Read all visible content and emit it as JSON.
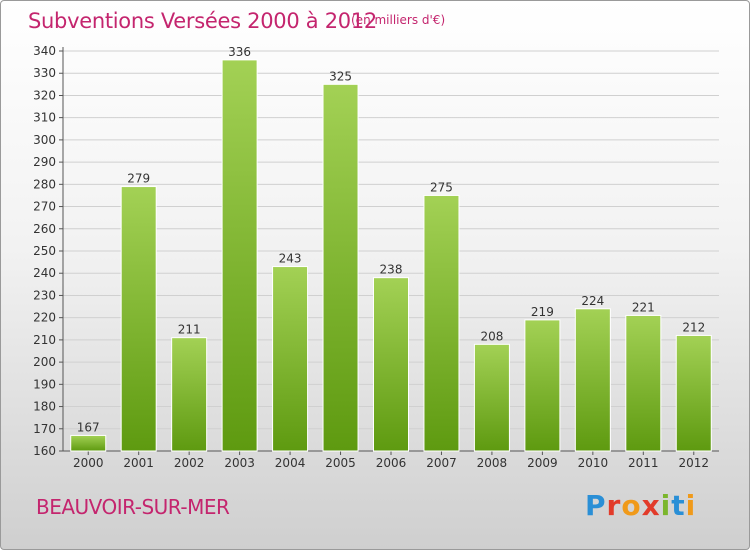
{
  "header": {
    "title": "Subventions Versées 2000 à 2012",
    "subtitle": "(en milliers d'€)"
  },
  "footer": {
    "place": "BEAUVOIR-SUR-MER",
    "logo": "Proxiti"
  },
  "colors": {
    "title": "#c4256e",
    "bar_top": "#a3d155",
    "bar_bottom": "#5e9a10",
    "grid": "#d0d0d0"
  },
  "chart_data": {
    "type": "bar",
    "title": "Subventions Versées 2000 à 2012",
    "subtitle": "(en milliers d'€)",
    "xlabel": "",
    "ylabel": "",
    "categories": [
      "2000",
      "2001",
      "2002",
      "2003",
      "2004",
      "2005",
      "2006",
      "2007",
      "2008",
      "2009",
      "2010",
      "2011",
      "2012"
    ],
    "values": [
      167,
      279,
      211,
      336,
      243,
      325,
      238,
      275,
      208,
      219,
      224,
      221,
      212
    ],
    "ylim": [
      160,
      340
    ],
    "yticks": [
      160,
      170,
      180,
      190,
      200,
      210,
      220,
      230,
      240,
      250,
      260,
      270,
      280,
      290,
      300,
      310,
      320,
      330,
      340
    ],
    "grid": true,
    "data_labels": true,
    "legend": "none"
  }
}
